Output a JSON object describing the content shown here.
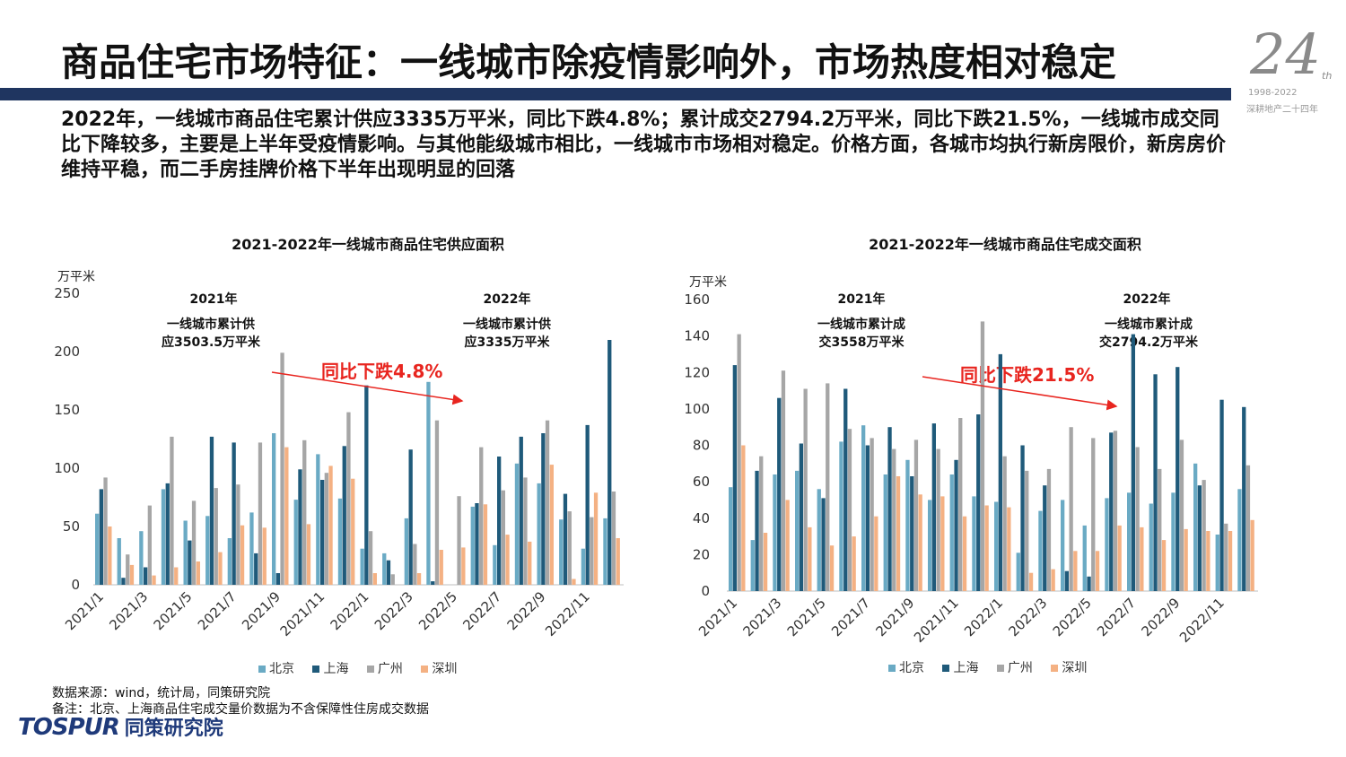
{
  "title": "商品住宅市场特征：一线城市除疫情影响外，市场热度相对稳定",
  "logo": {
    "number": "24",
    "suffix": "th",
    "years": "1998-2022",
    "slogan": "深耕地产二十四年"
  },
  "summary": "2022年，一线城市商品住宅累计供应3335万平米，同比下跌4.8%；累计成交2794.2万平米，同比下跌21.5%，一线城市成交同比下降较多，主要是上半年受疫情影响。与其他能级城市相比，一线城市市场相对稳定。价格方面，各城市均执行新房限价，新房房价维持平稳，而二手房挂牌价格下半年出现明显的回落",
  "colors": {
    "title_bar": "#1f3560",
    "beijing": "#6aaac4",
    "shanghai": "#1f5a7a",
    "guangzhou": "#a6a6a6",
    "shenzhen": "#f4b183",
    "yoy": "#e8251f"
  },
  "chart_data": [
    {
      "type": "bar",
      "title": "2021-2022年一线城市商品住宅供应面积",
      "ylabel": "万平米",
      "ylim": [
        0,
        250
      ],
      "yticks": [
        0,
        50,
        100,
        150,
        200,
        250
      ],
      "categories": [
        "2021/1",
        "2021/2",
        "2021/3",
        "2021/4",
        "2021/5",
        "2021/6",
        "2021/7",
        "2021/8",
        "2021/9",
        "2021/10",
        "2021/11",
        "2021/12",
        "2022/1",
        "2022/2",
        "2022/3",
        "2022/4",
        "2022/5",
        "2022/6",
        "2022/7",
        "2022/8",
        "2022/9",
        "2022/10",
        "2022/11",
        "2022/12"
      ],
      "xtick_labels": [
        "2021/1",
        "2021/3",
        "2021/5",
        "2021/7",
        "2021/9",
        "2021/11",
        "2022/1",
        "2022/3",
        "2022/5",
        "2022/7",
        "2022/9",
        "2022/11"
      ],
      "series": [
        {
          "name": "北京",
          "values": [
            61,
            40,
            46,
            82,
            55,
            59,
            40,
            62,
            130,
            73,
            112,
            74,
            31,
            27,
            57,
            174,
            0,
            67,
            34,
            104,
            87,
            56,
            31,
            57
          ]
        },
        {
          "name": "上海",
          "values": [
            82,
            6,
            15,
            87,
            38,
            127,
            122,
            27,
            10,
            99,
            90,
            119,
            171,
            21,
            116,
            3,
            0,
            70,
            110,
            127,
            130,
            78,
            137,
            210
          ]
        },
        {
          "name": "广州",
          "values": [
            92,
            26,
            68,
            127,
            72,
            83,
            86,
            122,
            199,
            124,
            96,
            148,
            46,
            9,
            35,
            141,
            76,
            118,
            81,
            92,
            141,
            63,
            58,
            80
          ]
        },
        {
          "name": "深圳",
          "values": [
            50,
            17,
            8,
            15,
            20,
            28,
            51,
            49,
            118,
            52,
            102,
            91,
            10,
            0,
            10,
            30,
            32,
            69,
            43,
            37,
            103,
            5,
            79,
            40
          ]
        }
      ],
      "legend_position": "bottom",
      "annotations": [
        {
          "year": "2021年",
          "text1": "一线城市累计供",
          "text2": "应3503.5万平米"
        },
        {
          "year": "2022年",
          "text1": "一线城市累计供",
          "text2": "应3335万平米"
        }
      ],
      "yoy_label": "同比下跌4.8%"
    },
    {
      "type": "bar",
      "title": "2021-2022年一线城市商品住宅成交面积",
      "ylabel": "万平米",
      "ylim": [
        0,
        160
      ],
      "yticks": [
        0,
        20,
        40,
        60,
        80,
        100,
        120,
        140,
        160
      ],
      "categories": [
        "2021/1",
        "2021/2",
        "2021/3",
        "2021/4",
        "2021/5",
        "2021/6",
        "2021/7",
        "2021/8",
        "2021/9",
        "2021/10",
        "2021/11",
        "2021/12",
        "2022/1",
        "2022/2",
        "2022/3",
        "2022/4",
        "2022/5",
        "2022/6",
        "2022/7",
        "2022/8",
        "2022/9",
        "2022/10",
        "2022/11",
        "2022/12"
      ],
      "xtick_labels": [
        "2021/1",
        "2021/3",
        "2021/5",
        "2021/7",
        "2021/9",
        "2021/11",
        "2022/1",
        "2022/3",
        "2022/5",
        "2022/7",
        "2022/9",
        "2022/11"
      ],
      "series": [
        {
          "name": "北京",
          "values": [
            57,
            28,
            64,
            66,
            56,
            82,
            91,
            64,
            72,
            50,
            64,
            52,
            49,
            21,
            44,
            50,
            36,
            51,
            54,
            48,
            54,
            70,
            31,
            56
          ]
        },
        {
          "name": "上海",
          "values": [
            124,
            66,
            106,
            81,
            51,
            111,
            80,
            90,
            63,
            92,
            72,
            97,
            130,
            80,
            58,
            11,
            8,
            87,
            141,
            119,
            123,
            58,
            105,
            101
          ]
        },
        {
          "name": "广州",
          "values": [
            141,
            74,
            121,
            111,
            114,
            89,
            84,
            78,
            83,
            78,
            95,
            148,
            74,
            66,
            67,
            90,
            84,
            88,
            79,
            67,
            83,
            61,
            37,
            69
          ]
        },
        {
          "name": "深圳",
          "values": [
            80,
            32,
            50,
            35,
            25,
            30,
            41,
            63,
            53,
            52,
            41,
            47,
            46,
            10,
            12,
            22,
            22,
            36,
            35,
            28,
            34,
            33,
            33,
            39
          ]
        }
      ],
      "legend_position": "bottom",
      "annotations": [
        {
          "year": "2021年",
          "text1": "一线城市累计成",
          "text2": "交3558万平米"
        },
        {
          "year": "2022年",
          "text1": "一线城市累计成",
          "text2": "交2794.2万平米"
        }
      ],
      "yoy_label": "同比下跌21.5%"
    }
  ],
  "source_line": "数据来源：wind，统计局，同策研究院",
  "note_line": "备注：北京、上海商品住宅成交量价数据为不含保障性住房成交数据",
  "brand": {
    "en": "TOSPUR",
    "cn": "同策研究院"
  }
}
